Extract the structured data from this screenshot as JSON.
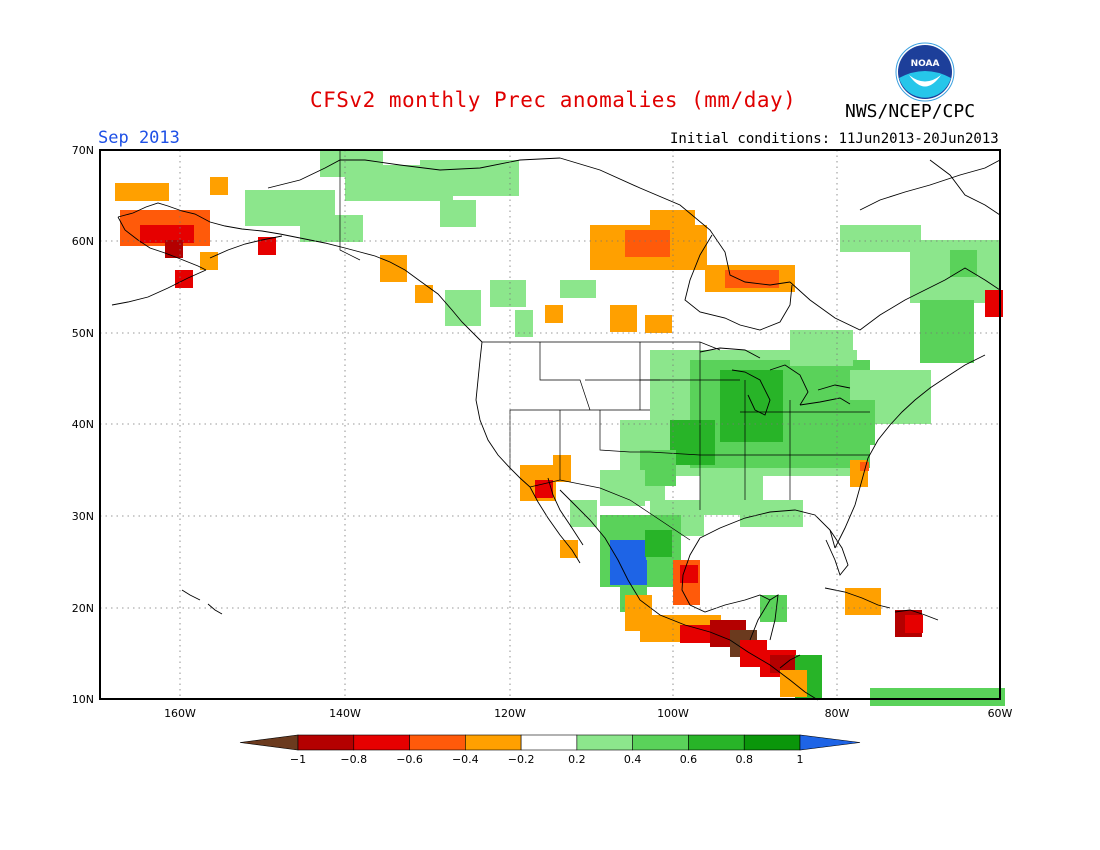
{
  "header": {
    "title": "CFSv2 monthly Prec anomalies (mm/day)",
    "agency": "NWS/NCEP/CPC",
    "logo_text": "NOAA",
    "month": "Sep 2013",
    "initial_conditions": "Initial conditions: 11Jun2013-20Jun2013"
  },
  "map": {
    "lat_labels": [
      "70N",
      "60N",
      "50N",
      "40N",
      "30N",
      "20N",
      "10N"
    ],
    "lon_labels": [
      "160W",
      "140W",
      "120W",
      "100W",
      "80W",
      "60W"
    ]
  },
  "colorbar": {
    "tick_labels": [
      "-1",
      "-0.8",
      "-0.6",
      "-0.4",
      "-0.2",
      "0.2",
      "0.4",
      "0.6",
      "0.8",
      "1"
    ],
    "colors": [
      "#6b3a1e",
      "#b40000",
      "#e60000",
      "#ff5a0a",
      "#ffa000",
      "#ffffff",
      "#8ce68c",
      "#5ad25a",
      "#28b428",
      "#0a960a",
      "#1e64e6"
    ]
  }
}
